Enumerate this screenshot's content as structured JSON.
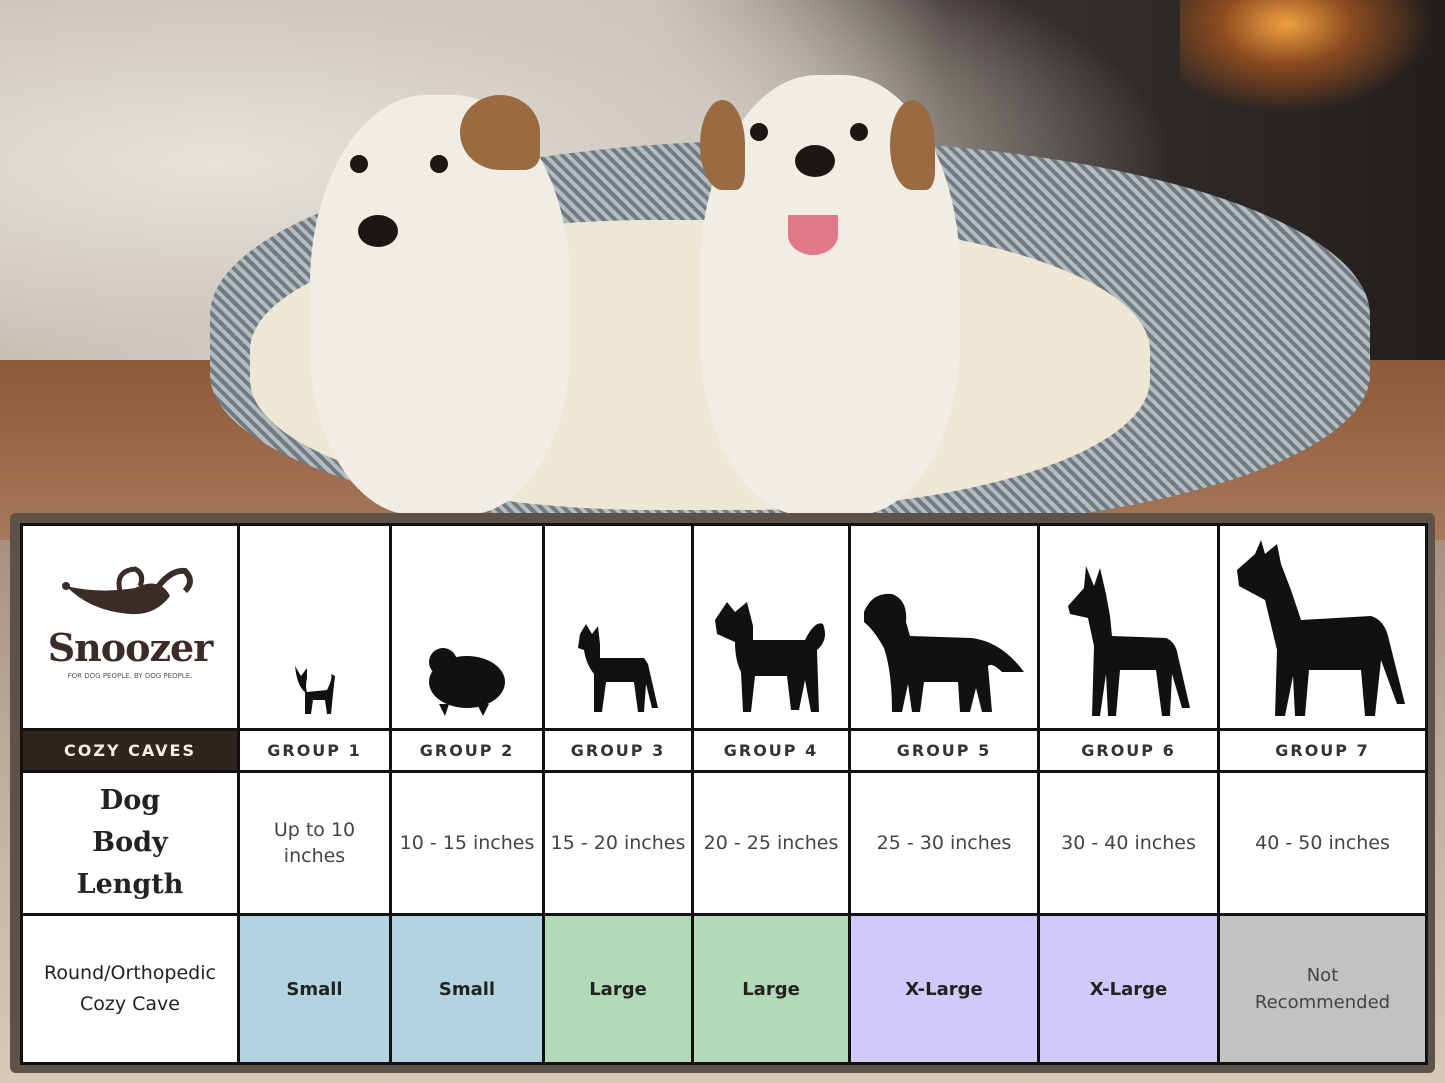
{
  "brand": {
    "name": "Snoozer",
    "tagline": "FOR DOG PEOPLE. BY DOG PEOPLE.",
    "product_line": "COZY CAVES"
  },
  "groups": [
    "GROUP 1",
    "GROUP 2",
    "GROUP 3",
    "GROUP 4",
    "GROUP 5",
    "GROUP 6",
    "GROUP 7"
  ],
  "rows": {
    "length": {
      "label": "Dog Body Length",
      "values": [
        "Up to 10 inches",
        "10 - 15 inches",
        "15 - 20 inches",
        "20 - 25 inches",
        "25 - 30 inches",
        "30 - 40 inches",
        "40 - 50 inches"
      ]
    },
    "bed": {
      "label": "Round/Orthopedic Cozy Cave",
      "values": [
        "Small",
        "Small",
        "Large",
        "Large",
        "X-Large",
        "X-Large",
        "Not Recommended"
      ]
    }
  },
  "size_colors": {
    "Small": "#b2d4e0",
    "Large": "#b2d9b8",
    "X-Large": "#d2c9fb",
    "Not Recommended": "#c2c2c2"
  },
  "dog_icons": [
    "chihuahua-silhouette",
    "pomeranian-silhouette",
    "boston-terrier-silhouette",
    "shiba-silhouette",
    "golden-retriever-silhouette",
    "doberman-silhouette",
    "great-dane-silhouette"
  ]
}
